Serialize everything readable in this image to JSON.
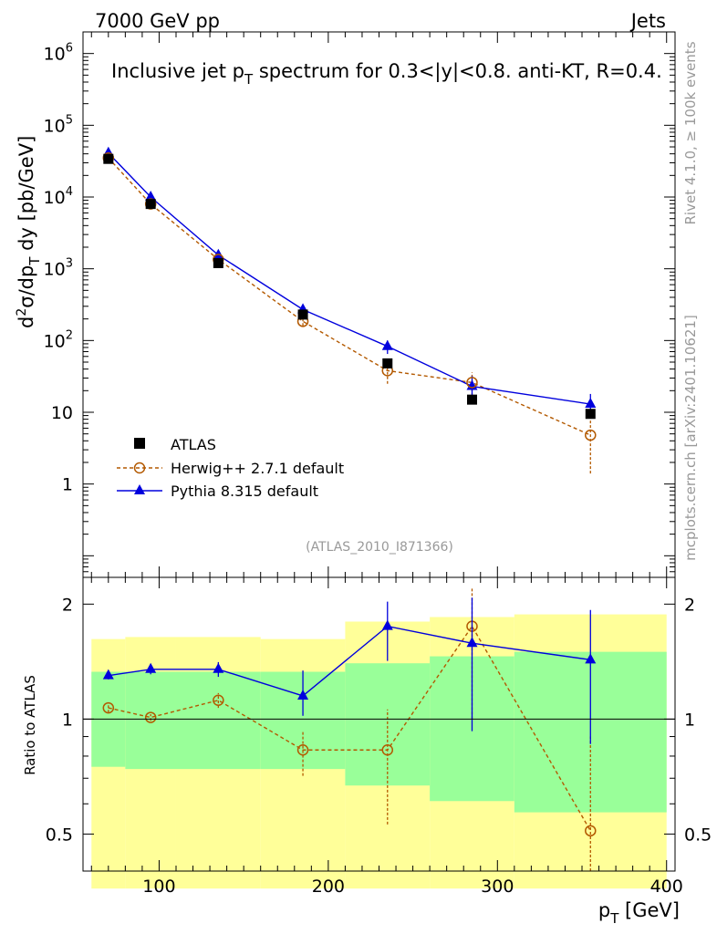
{
  "header": {
    "left": "7000 GeV pp",
    "right": "Jets"
  },
  "side_labels": {
    "rivet": "Rivet 4.1.0, ≥ 100k events",
    "mcplots": "mcplots.cern.ch [arXiv:2401.10621]"
  },
  "chart_data": {
    "type": "line",
    "title_parts": {
      "pre": "Inclusive jet p",
      "sub": "T",
      "post": " spectrum for 0.3<|y|<0.8.  anti-KT, R=0.4."
    },
    "analysis_tag": "(ATLAS_2010_I871366)",
    "xlabel": {
      "main": "p",
      "sub": "T",
      "unit": " [GeV]"
    },
    "ylabel_main": "d²σ/dp_T dy [pb/GeV]",
    "ylabel_ratio": "Ratio to ATLAS",
    "xlim": [
      55,
      405
    ],
    "ylim_main_log": [
      0.05,
      2000000
    ],
    "ylim_ratio_log": [
      0.4,
      2.35
    ],
    "x_ticks": [
      100,
      200,
      300,
      400
    ],
    "main_y_tick_labels": [
      {
        "value": 1000000,
        "base": "10",
        "exp": "6"
      },
      {
        "value": 100000,
        "base": "10",
        "exp": "5"
      },
      {
        "value": 10000,
        "base": "10",
        "exp": "4"
      },
      {
        "value": 1000,
        "base": "10",
        "exp": "3"
      },
      {
        "value": 100,
        "base": "10",
        "exp": "2"
      },
      {
        "value": 10,
        "base": "10",
        "exp": ""
      },
      {
        "value": 1,
        "base": "1",
        "exp": ""
      }
    ],
    "ratio_y_ticks": [
      {
        "value": 2,
        "label": "2"
      },
      {
        "value": 1,
        "label": "1"
      },
      {
        "value": 0.5,
        "label": "0.5"
      }
    ],
    "bins": [
      {
        "lo": 60,
        "hi": 80
      },
      {
        "lo": 80,
        "hi": 110
      },
      {
        "lo": 110,
        "hi": 160
      },
      {
        "lo": 160,
        "hi": 210
      },
      {
        "lo": 210,
        "hi": 260
      },
      {
        "lo": 260,
        "hi": 310
      },
      {
        "lo": 310,
        "hi": 400
      }
    ],
    "series": [
      {
        "name": "ATLAS",
        "marker": "square",
        "color": "#000000",
        "x": [
          70,
          95,
          135,
          185,
          235,
          285,
          355
        ],
        "y": [
          34000,
          8000,
          1200,
          230,
          48,
          15,
          9.5
        ]
      },
      {
        "name": "Herwig++ 2.7.1 default",
        "marker": "circle",
        "color": "#b35900",
        "dashed": true,
        "x": [
          70,
          95,
          135,
          185,
          235,
          285,
          355
        ],
        "y": [
          35000,
          8000,
          1350,
          185,
          38,
          26,
          4.8
        ],
        "err_lo": [
          32000,
          7600,
          1250,
          160,
          25,
          17,
          1.4
        ],
        "err_hi": [
          38000,
          8400,
          1450,
          210,
          52,
          36,
          8.6
        ],
        "ratio": [
          1.07,
          1.01,
          1.12,
          0.83,
          0.83,
          1.75,
          0.51
        ],
        "ratio_err_lo": [
          1.04,
          0.99,
          1.07,
          0.71,
          0.53,
          1.0,
          0.36
        ],
        "ratio_err_hi": [
          1.1,
          1.03,
          1.17,
          0.93,
          1.06,
          2.22,
          0.9
        ]
      },
      {
        "name": "Pythia 8.315 default",
        "marker": "triangle",
        "color": "#0000dd",
        "dashed": false,
        "x": [
          70,
          95,
          135,
          185,
          235,
          285,
          355
        ],
        "y": [
          41000,
          10000,
          1550,
          270,
          83,
          23,
          13
        ],
        "err_lo": [
          39500,
          9500,
          1450,
          240,
          65,
          14,
          9
        ],
        "err_hi": [
          42500,
          10500,
          1650,
          300,
          100,
          32,
          18
        ],
        "ratio": [
          1.3,
          1.35,
          1.35,
          1.15,
          1.75,
          1.58,
          1.43
        ],
        "ratio_err_lo": [
          1.27,
          1.31,
          1.29,
          1.02,
          1.42,
          0.93,
          0.86
        ],
        "ratio_err_hi": [
          1.33,
          1.39,
          1.41,
          1.34,
          2.03,
          2.08,
          1.93
        ]
      }
    ],
    "data_band": {
      "yellow_lo": [
        0.36,
        0.36,
        0.36,
        0.36,
        0.36,
        0.36,
        0.36
      ],
      "yellow_hi": [
        1.62,
        1.64,
        1.64,
        1.62,
        1.8,
        1.85,
        1.88
      ],
      "green_lo": [
        0.75,
        0.74,
        0.74,
        0.74,
        0.67,
        0.61,
        0.57
      ],
      "green_hi": [
        1.33,
        1.33,
        1.33,
        1.33,
        1.4,
        1.46,
        1.5
      ]
    },
    "colors": {
      "yellow": "#ffff99",
      "green": "#99ff99"
    }
  }
}
